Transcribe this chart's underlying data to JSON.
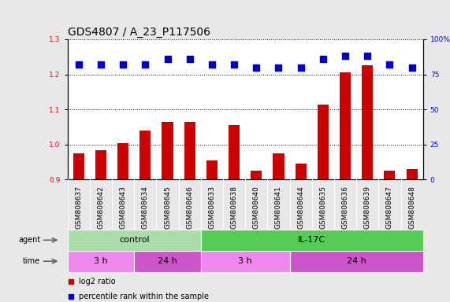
{
  "title": "GDS4807 / A_23_P117506",
  "samples": [
    "GSM808637",
    "GSM808642",
    "GSM808643",
    "GSM808634",
    "GSM808645",
    "GSM808646",
    "GSM808633",
    "GSM808638",
    "GSM808640",
    "GSM808641",
    "GSM808644",
    "GSM808635",
    "GSM808636",
    "GSM808639",
    "GSM808647",
    "GSM808648"
  ],
  "log2_ratio": [
    0.975,
    0.985,
    1.005,
    1.04,
    1.065,
    1.065,
    0.955,
    1.055,
    0.925,
    0.975,
    0.945,
    1.115,
    1.205,
    1.225,
    0.925,
    0.93
  ],
  "percentile": [
    82,
    82,
    82,
    82,
    86,
    86,
    82,
    82,
    80,
    80,
    80,
    86,
    88,
    88,
    82,
    80
  ],
  "bar_color": "#cc0000",
  "dot_color": "#0000cc",
  "ylim_left": [
    0.9,
    1.3
  ],
  "ylim_right": [
    0,
    100
  ],
  "yticks_left": [
    0.9,
    1.0,
    1.1,
    1.2,
    1.3
  ],
  "yticks_right_vals": [
    0,
    25,
    50,
    75,
    100
  ],
  "yticks_right_labels": [
    "0",
    "25",
    "50",
    "75",
    "100%"
  ],
  "agent_groups": [
    {
      "label": "control",
      "start": 0,
      "end": 6,
      "color": "#aaddaa"
    },
    {
      "label": "IL-17C",
      "start": 6,
      "end": 16,
      "color": "#55cc55"
    }
  ],
  "time_groups": [
    {
      "label": "3 h",
      "start": 0,
      "end": 3,
      "color": "#ee88ee"
    },
    {
      "label": "24 h",
      "start": 3,
      "end": 6,
      "color": "#cc55cc"
    },
    {
      "label": "3 h",
      "start": 6,
      "end": 10,
      "color": "#ee88ee"
    },
    {
      "label": "24 h",
      "start": 10,
      "end": 16,
      "color": "#cc55cc"
    }
  ],
  "legend_items": [
    {
      "color": "#cc0000",
      "label": "log2 ratio"
    },
    {
      "color": "#0000cc",
      "label": "percentile rank within the sample"
    }
  ],
  "background_color": "#e8e8e8",
  "plot_bg": "#ffffff",
  "sample_box_color": "#d0d0d0",
  "bar_width": 0.5,
  "dot_size": 40,
  "title_fontsize": 10,
  "tick_fontsize": 6.5,
  "label_fontsize": 8,
  "bar_bottom": 0.9
}
